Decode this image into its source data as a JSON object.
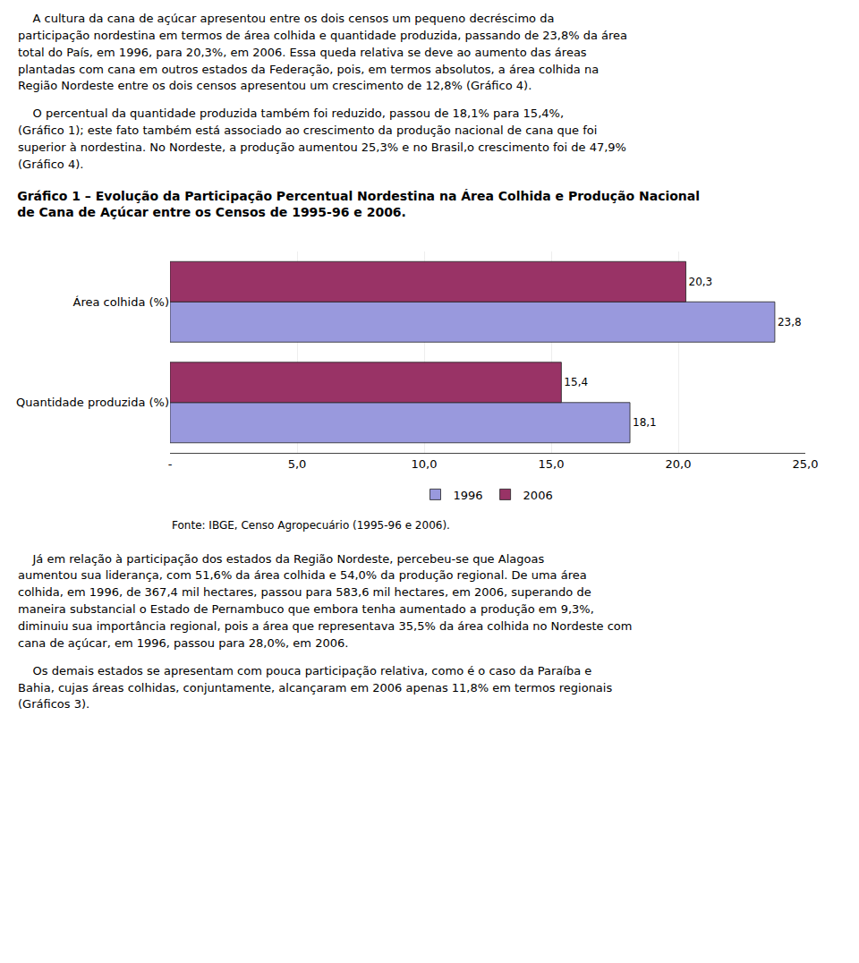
{
  "chart_data": {
    "type": "bar",
    "orientation": "horizontal",
    "title": "Gráfico 1 – Evolução da Participação Percentual Nordestina na Área Colhida e Produção Nacional\nde Cana de Açúcar entre os Censos de 1995-96 e 2006.",
    "annotations": [
      "Fonte: IBGE, Censo Agropecuário (1995-96 e 2006)."
    ],
    "categories": [
      "Área colhida (%)",
      "Quantidade produzida (%)"
    ],
    "series": [
      {
        "name": "1996",
        "color": "#9999dd",
        "values": [
          23.8,
          18.1
        ],
        "value_labels": [
          "23,8",
          "18,1"
        ]
      },
      {
        "name": "2006",
        "color": "#993366",
        "values": [
          20.3,
          15.4
        ],
        "value_labels": [
          "20,3",
          "15,4"
        ]
      }
    ],
    "xlim": [
      0,
      25.0
    ],
    "xticks": [
      {
        "value": 0,
        "label": "-"
      },
      {
        "value": 5.0,
        "label": "5,0"
      },
      {
        "value": 10.0,
        "label": "10,0"
      },
      {
        "value": 15.0,
        "label": "15,0"
      },
      {
        "value": 20.0,
        "label": "20,0"
      },
      {
        "value": 25.0,
        "label": "25,0"
      }
    ],
    "grid": true,
    "data_labels": true,
    "legend": "bottom"
  },
  "text_above": [
    "    A cultura da cana de açúcar apresentou entre os dois censos um pequeno decréscimo da\nparticipação nordestina em termos de área colhida e quantidade produzida, passando de 23,8% da área\ntotal do País, em 1996, para 20,3%, em 2006. Essa queda relativa se deve ao aumento das áreas\nplantadas com cana em outros estados da Federação, pois, em termos absolutos, a área colhida na\nRegião Nordeste entre os dois censos apresentou um crescimento de 12,8% (Gráfico 4).",
    "    O percentual da quantidade produzida também foi reduzido, passou de 18,1% para 15,4%,\n(Gráfico 1); este fato também está associado ao crescimento da produção nacional de cana que foi\nsuperior à nordestina. No Nordeste, a produção aumentou 25,3% e no Brasil,o crescimento foi de 47,9%\n(Gráfico 4)."
  ],
  "text_below": [
    "    Já em relação à participação dos estados da Região Nordeste, percebeu-se que Alagoas\naumentou sua liderança, com 51,6% da área colhida e 54,0% da produção regional. De uma área\ncolhida, em 1996, de 367,4 mil hectares, passou para 583,6 mil hectares, em 2006, superando de\nmaneira substancial o Estado de Pernambuco que embora tenha aumentado a produção em 9,3%,\ndiminuiu sua importância regional, pois a área que representava 35,5% da área colhida no Nordeste com\ncana de açúcar, em 1996, passou para 28,0%, em 2006.",
    "    Os demais estados se apresentam com pouca participação relativa, como é o caso da Paraíba e\nBahia, cujas áreas colhidas, conjuntamente, alcançaram em 2006 apenas 11,8% em termos regionais\n(Gráficos 3)."
  ]
}
